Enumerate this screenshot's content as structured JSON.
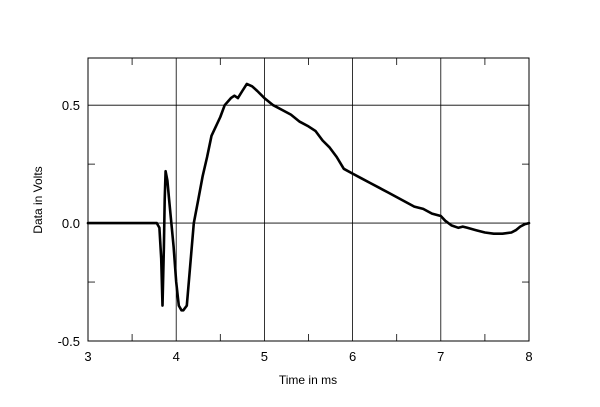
{
  "chart_data": {
    "type": "line",
    "title": "",
    "xlabel": "Time in ms",
    "ylabel": "Data in Volts",
    "xlim": [
      3,
      8
    ],
    "ylim": [
      -0.5,
      0.7
    ],
    "x_ticks": [
      3,
      4,
      5,
      6,
      7,
      8
    ],
    "x_tick_labels": [
      "3",
      "4",
      "5",
      "6",
      "7",
      "8"
    ],
    "y_ticks": [
      -0.5,
      0.0,
      0.5
    ],
    "y_tick_labels": [
      "-0.5",
      "0.0",
      "0.5"
    ],
    "grid": true,
    "legend": "none",
    "colors": {
      "line": "#000000",
      "grid": "#000000",
      "background": "#ffffff"
    },
    "series": [
      {
        "x": [
          3.0,
          3.5,
          3.78,
          3.81,
          3.83,
          3.845,
          3.86,
          3.87,
          3.88,
          3.9,
          3.92,
          3.95,
          3.97,
          4.0,
          4.03,
          4.06,
          4.08,
          4.12,
          4.15,
          4.2,
          4.25,
          4.3,
          4.35,
          4.4,
          4.5,
          4.55,
          4.62,
          4.66,
          4.7,
          4.75,
          4.8,
          4.86,
          4.92,
          5.0,
          5.1,
          5.2,
          5.3,
          5.4,
          5.5,
          5.58,
          5.66,
          5.74,
          5.82,
          5.9,
          6.0,
          6.1,
          6.2,
          6.3,
          6.4,
          6.5,
          6.6,
          6.7,
          6.8,
          6.9,
          7.0,
          7.05,
          7.12,
          7.2,
          7.25,
          7.3,
          7.4,
          7.5,
          7.6,
          7.65,
          7.7,
          7.8,
          7.85,
          7.9,
          7.95,
          8.0
        ],
        "y": [
          0.0,
          0.0,
          0.0,
          -0.02,
          -0.15,
          -0.35,
          -0.1,
          0.1,
          0.22,
          0.18,
          0.1,
          -0.02,
          -0.1,
          -0.25,
          -0.35,
          -0.37,
          -0.37,
          -0.35,
          -0.22,
          0.0,
          0.1,
          0.2,
          0.28,
          0.37,
          0.45,
          0.5,
          0.53,
          0.54,
          0.53,
          0.56,
          0.59,
          0.58,
          0.56,
          0.53,
          0.5,
          0.48,
          0.46,
          0.43,
          0.41,
          0.39,
          0.35,
          0.32,
          0.28,
          0.23,
          0.21,
          0.19,
          0.17,
          0.15,
          0.13,
          0.11,
          0.09,
          0.07,
          0.06,
          0.04,
          0.03,
          0.01,
          -0.01,
          -0.02,
          -0.015,
          -0.02,
          -0.03,
          -0.04,
          -0.045,
          -0.045,
          -0.045,
          -0.04,
          -0.03,
          -0.015,
          -0.005,
          0.0
        ]
      }
    ]
  }
}
